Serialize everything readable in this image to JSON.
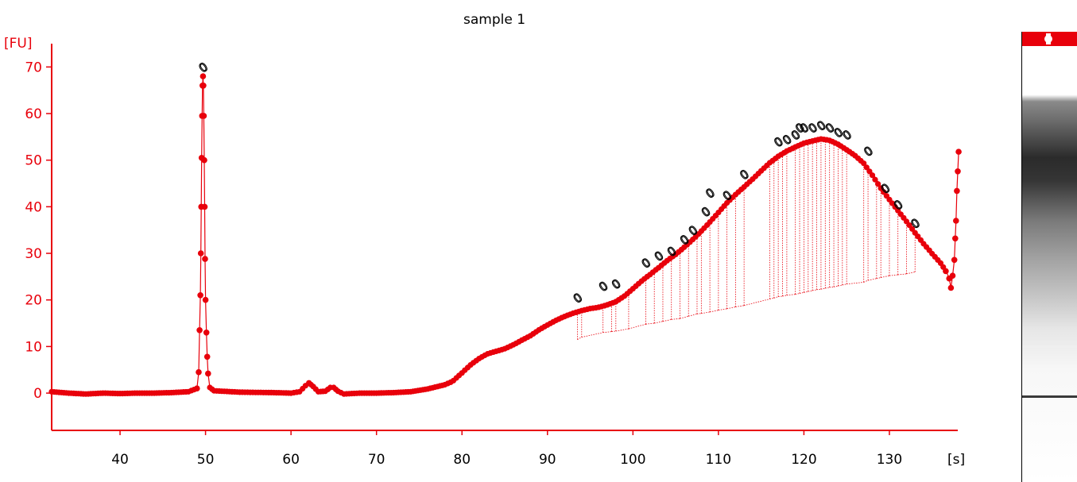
{
  "chart_data": {
    "type": "line",
    "title": "sample 1",
    "ylabel": "[FU]",
    "xlabel": "[s]",
    "xlim": [
      32,
      138
    ],
    "ylim": [
      -8,
      75
    ],
    "xticks": [
      40,
      50,
      60,
      70,
      80,
      90,
      100,
      110,
      120,
      130
    ],
    "yticks": [
      0,
      10,
      20,
      30,
      40,
      50,
      60,
      70
    ],
    "grid": false,
    "colors": {
      "trace": "#e8000b",
      "axis": "#e8000b",
      "marker_outline": "#000000"
    },
    "series": [
      {
        "points": [
          [
            32,
            0.3
          ],
          [
            34,
            0
          ],
          [
            36,
            -0.2
          ],
          [
            38,
            0
          ],
          [
            40,
            -0.1
          ],
          [
            42,
            0
          ],
          [
            44,
            0
          ],
          [
            46,
            0.1
          ],
          [
            48,
            0.3
          ],
          [
            49,
            1.0
          ],
          [
            49.2,
            4.5
          ],
          [
            49.3,
            13.5
          ],
          [
            49.4,
            21
          ],
          [
            49.45,
            30
          ],
          [
            49.5,
            40
          ],
          [
            49.55,
            50.5
          ],
          [
            49.6,
            59.5
          ],
          [
            49.65,
            66
          ],
          [
            49.7,
            68
          ],
          [
            49.75,
            66
          ],
          [
            49.8,
            59.5
          ],
          [
            49.85,
            50
          ],
          [
            49.9,
            40
          ],
          [
            49.95,
            28.8
          ],
          [
            50,
            20
          ],
          [
            50.1,
            13
          ],
          [
            50.2,
            7.8
          ],
          [
            50.3,
            4.2
          ],
          [
            50.5,
            1.2
          ],
          [
            51,
            0.5
          ],
          [
            54,
            0.2
          ],
          [
            58,
            0.1
          ],
          [
            60,
            0
          ],
          [
            61,
            0.3
          ],
          [
            61.7,
            1.6
          ],
          [
            62.1,
            2.2
          ],
          [
            62.6,
            1.4
          ],
          [
            63.2,
            0.3
          ],
          [
            64,
            0.4
          ],
          [
            64.6,
            1.2
          ],
          [
            65,
            1.2
          ],
          [
            65.5,
            0.4
          ],
          [
            66.2,
            -0.2
          ],
          [
            68,
            0
          ],
          [
            70,
            0
          ],
          [
            72,
            0.1
          ],
          [
            74,
            0.3
          ],
          [
            76,
            0.9
          ],
          [
            78,
            1.8
          ],
          [
            79,
            2.6
          ],
          [
            80,
            4.0
          ],
          [
            81,
            5.6
          ],
          [
            82,
            7.0
          ],
          [
            83,
            8.2
          ],
          [
            84,
            9.0
          ],
          [
            85,
            9.8
          ],
          [
            86,
            10.8
          ],
          [
            87,
            11.8
          ],
          [
            88,
            12.6
          ],
          [
            89,
            13.6
          ],
          [
            90,
            14.4
          ],
          [
            91,
            15.2
          ],
          [
            92,
            16.0
          ],
          [
            93,
            16.8
          ],
          [
            94,
            17.6
          ],
          [
            95,
            18.3
          ],
          [
            96,
            18.8
          ],
          [
            97,
            19.4
          ],
          [
            98,
            20.0
          ],
          [
            99,
            21.0
          ],
          [
            100,
            22.3
          ],
          [
            101,
            23.7
          ],
          [
            102,
            25.0
          ],
          [
            103,
            26.5
          ],
          [
            104,
            28.2
          ],
          [
            105,
            29.8
          ],
          [
            106,
            31.6
          ],
          [
            107,
            33.4
          ],
          [
            108,
            35.2
          ],
          [
            109,
            37.0
          ],
          [
            110,
            38.8
          ],
          [
            111,
            40.6
          ],
          [
            112,
            42.2
          ],
          [
            113,
            43.8
          ],
          [
            114,
            45.6
          ],
          [
            115,
            47.6
          ],
          [
            116,
            49.6
          ],
          [
            117,
            51.2
          ],
          [
            118,
            52.4
          ],
          [
            119,
            53.2
          ],
          [
            120,
            53.8
          ],
          [
            121,
            54.0
          ],
          [
            122,
            54.2
          ],
          [
            123,
            53.8
          ],
          [
            124,
            53.0
          ],
          [
            125,
            52.0
          ],
          [
            126,
            51.0
          ],
          [
            127,
            49.6
          ],
          [
            128,
            47.2
          ],
          [
            129,
            44.4
          ],
          [
            130,
            41.8
          ],
          [
            131,
            39.2
          ],
          [
            132,
            36.6
          ],
          [
            133,
            34.0
          ],
          [
            134,
            31.6
          ],
          [
            135,
            29.6
          ],
          [
            136,
            27.8
          ],
          [
            136.6,
            26.4
          ],
          [
            137,
            24.6
          ],
          [
            137.2,
            22.6
          ],
          [
            137.4,
            25.2
          ],
          [
            137.6,
            28.6
          ],
          [
            137.7,
            33.2
          ],
          [
            137.8,
            37.0
          ],
          [
            137.9,
            43.4
          ],
          [
            138,
            47.6
          ],
          [
            138.1,
            51.8
          ]
        ]
      }
    ],
    "annotations": {
      "marker_symbol": "0",
      "fragment_peaks": [
        [
          49.7,
          70
        ],
        [
          93.5,
          20.5
        ],
        [
          96.5,
          23
        ],
        [
          98,
          23.5
        ],
        [
          101.5,
          28
        ],
        [
          103,
          29.5
        ],
        [
          104.5,
          30.5
        ],
        [
          106,
          33
        ],
        [
          107,
          35
        ],
        [
          108.5,
          39
        ],
        [
          109,
          43
        ],
        [
          111,
          42.5
        ],
        [
          113,
          47
        ],
        [
          117,
          54
        ],
        [
          118,
          54.5
        ],
        [
          119,
          55.5
        ],
        [
          119.5,
          57
        ],
        [
          120,
          57
        ],
        [
          121,
          57
        ],
        [
          122,
          57.5
        ],
        [
          123,
          57
        ],
        [
          124,
          56
        ],
        [
          125,
          55.5
        ],
        [
          127.5,
          52
        ],
        [
          129.5,
          44
        ],
        [
          131,
          40.5
        ],
        [
          133,
          36.5
        ]
      ],
      "drop_line_bases": [
        [
          93.5,
          11.5
        ],
        [
          94,
          12
        ],
        [
          96.5,
          13
        ],
        [
          97.5,
          13.2
        ],
        [
          98,
          13.3
        ],
        [
          99.5,
          13.8
        ],
        [
          101.5,
          14.8
        ],
        [
          102.5,
          15
        ],
        [
          103.5,
          15.4
        ],
        [
          104.5,
          15.8
        ],
        [
          105.5,
          16
        ],
        [
          106.5,
          16.5
        ],
        [
          107.5,
          17
        ],
        [
          108,
          17.1
        ],
        [
          109,
          17.4
        ],
        [
          110,
          17.8
        ],
        [
          111,
          18.1
        ],
        [
          112,
          18.5
        ],
        [
          113,
          18.8
        ],
        [
          116,
          20.2
        ],
        [
          116.5,
          20.4
        ],
        [
          117,
          20.7
        ],
        [
          117.5,
          20.8
        ],
        [
          118,
          21
        ],
        [
          119,
          21.2
        ],
        [
          119.5,
          21.4
        ],
        [
          120,
          21.6
        ],
        [
          120.5,
          21.8
        ],
        [
          121,
          22
        ],
        [
          121.5,
          22.2
        ],
        [
          122,
          22.3
        ],
        [
          122.5,
          22.5
        ],
        [
          123,
          22.7
        ],
        [
          123.5,
          22.8
        ],
        [
          124,
          23
        ],
        [
          124.5,
          23.2
        ],
        [
          125,
          23.4
        ],
        [
          127,
          23.8
        ],
        [
          127.5,
          24.2
        ],
        [
          128.5,
          24.6
        ],
        [
          129,
          24.8
        ],
        [
          130,
          25.2
        ],
        [
          131,
          25.4
        ],
        [
          132,
          25.6
        ],
        [
          133,
          26
        ]
      ]
    }
  }
}
